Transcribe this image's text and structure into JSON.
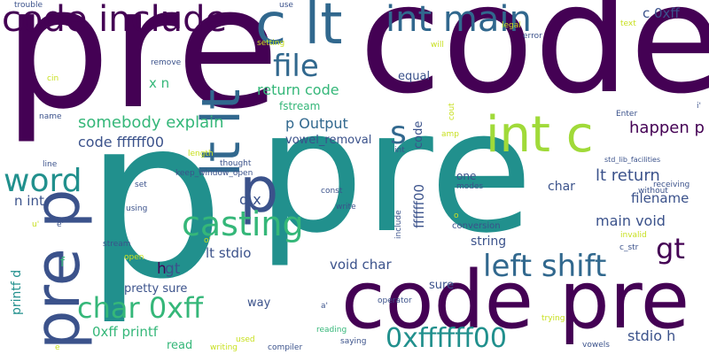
{
  "colors": {
    "dark_purple": "#440154",
    "indigo": "#3b528b",
    "blue": "#31688e",
    "teal": "#21908d",
    "green": "#35b779",
    "lime": "#a0da39",
    "yellow": "#c8e020",
    "dark_gray": "#46327e"
  },
  "words": [
    {
      "text": "pre",
      "color": "dark_purple",
      "rot": 0
    },
    {
      "text": "code",
      "color": "dark_purple",
      "rot": 0
    },
    {
      "text": "p",
      "color": "teal",
      "rot": 0
    },
    {
      "text": "pre",
      "color": "teal",
      "rot": 0
    },
    {
      "text": "code pre",
      "color": "dark_purple",
      "rot": 0
    },
    {
      "text": "code include",
      "color": "dark_purple",
      "rot": 0
    },
    {
      "text": "c lt",
      "color": "blue",
      "rot": 0
    },
    {
      "text": "int main",
      "color": "blue",
      "rot": 0
    },
    {
      "text": "int c",
      "color": "lime",
      "rot": 0
    },
    {
      "text": "lt lt",
      "color": "blue",
      "rot": -90
    },
    {
      "text": "pre p",
      "color": "indigo",
      "rot": -90
    },
    {
      "text": "p",
      "color": "indigo",
      "rot": 0
    },
    {
      "text": "file",
      "color": "blue",
      "rot": 0
    },
    {
      "text": "word",
      "color": "teal",
      "rot": 0
    },
    {
      "text": "casting",
      "color": "green",
      "rot": 0
    },
    {
      "text": "left shift",
      "color": "blue",
      "rot": 0
    },
    {
      "text": "char 0xff",
      "color": "green",
      "rot": 0
    },
    {
      "text": "0xffffff00",
      "color": "teal",
      "rot": 0
    },
    {
      "text": "gt",
      "color": "dark_purple",
      "rot": 0
    },
    {
      "text": "s",
      "color": "blue",
      "rot": 0
    },
    {
      "text": "return code",
      "color": "green",
      "rot": 0
    },
    {
      "text": "somebody explain",
      "color": "green",
      "rot": 0
    },
    {
      "text": "code ffffff00",
      "color": "indigo",
      "rot": 0
    },
    {
      "text": "p Output",
      "color": "blue",
      "rot": 0
    },
    {
      "text": "vowel_removal",
      "color": "indigo",
      "rot": 0
    },
    {
      "text": "happen p",
      "color": "dark_purple",
      "rot": 0
    },
    {
      "text": "lt return",
      "color": "indigo",
      "rot": 0
    },
    {
      "text": "filename",
      "color": "indigo",
      "rot": 0
    },
    {
      "text": "main void",
      "color": "indigo",
      "rot": 0
    },
    {
      "text": "stdio h",
      "color": "indigo",
      "rot": 0
    },
    {
      "text": "void char",
      "color": "indigo",
      "rot": 0
    },
    {
      "text": "lt stdio",
      "color": "indigo",
      "rot": 0
    },
    {
      "text": "pretty sure",
      "color": "indigo",
      "rot": 0
    },
    {
      "text": "0xff printf",
      "color": "green",
      "rot": 0
    },
    {
      "text": "string",
      "color": "indigo",
      "rot": 0
    },
    {
      "text": "char",
      "color": "indigo",
      "rot": 0
    },
    {
      "text": "sure",
      "color": "indigo",
      "rot": 0
    },
    {
      "text": "way",
      "color": "indigo",
      "rot": 0
    },
    {
      "text": "read",
      "color": "green",
      "rot": 0
    },
    {
      "text": "h",
      "color": "dark_purple",
      "rot": 0
    },
    {
      "text": "gt",
      "color": "indigo",
      "rot": 0
    },
    {
      "text": "d x",
      "color": "indigo",
      "rot": 0
    },
    {
      "text": "n int",
      "color": "indigo",
      "rot": 0
    },
    {
      "text": "x n",
      "color": "green",
      "rot": 0
    },
    {
      "text": "equal",
      "color": "indigo",
      "rot": 0
    },
    {
      "text": "fstream",
      "color": "green",
      "rot": 0
    },
    {
      "text": "c 0xff",
      "color": "indigo",
      "rot": 0
    },
    {
      "text": "ffffff00",
      "color": "indigo",
      "rot": -90
    },
    {
      "text": "code",
      "color": "indigo",
      "rot": -90
    },
    {
      "text": "printf d",
      "color": "teal",
      "rot": -90
    },
    {
      "text": "f",
      "color": "green",
      "rot": 0
    },
    {
      "text": "one",
      "color": "indigo",
      "rot": 0
    },
    {
      "text": "modes",
      "color": "indigo",
      "rot": 0
    },
    {
      "text": "conversion",
      "color": "indigo",
      "rot": 0
    },
    {
      "text": "int",
      "color": "indigo",
      "rot": 0
    },
    {
      "text": "const",
      "color": "indigo",
      "rot": 0
    },
    {
      "text": "write",
      "color": "indigo",
      "rot": 0
    },
    {
      "text": "include",
      "color": "indigo",
      "rot": -90
    },
    {
      "text": "operator",
      "color": "indigo",
      "rot": 0
    },
    {
      "text": "reading",
      "color": "green",
      "rot": 0
    },
    {
      "text": "saying",
      "color": "indigo",
      "rot": 0
    },
    {
      "text": "compiler",
      "color": "indigo",
      "rot": 0
    },
    {
      "text": "writing",
      "color": "yellow",
      "rot": 0
    },
    {
      "text": "used",
      "color": "yellow",
      "rot": 0
    },
    {
      "text": "vowels",
      "color": "indigo",
      "rot": 0
    },
    {
      "text": "trying",
      "color": "yellow",
      "rot": 0
    },
    {
      "text": "c_str",
      "color": "indigo",
      "rot": 0
    },
    {
      "text": "invalid",
      "color": "yellow",
      "rot": 0
    },
    {
      "text": "without",
      "color": "indigo",
      "rot": 0
    },
    {
      "text": "receiving",
      "color": "indigo",
      "rot": 0
    },
    {
      "text": "std_lib_facilities",
      "color": "indigo",
      "rot": 0
    },
    {
      "text": "Enter",
      "color": "indigo",
      "rot": 0
    },
    {
      "text": "error",
      "color": "indigo",
      "rot": 0
    },
    {
      "text": "text",
      "color": "yellow",
      "rot": 0
    },
    {
      "text": "legal",
      "color": "yellow",
      "rot": 0
    },
    {
      "text": "will",
      "color": "yellow",
      "rot": 0
    },
    {
      "text": "use",
      "color": "indigo",
      "rot": 0
    },
    {
      "text": "trouble",
      "color": "indigo",
      "rot": 0
    },
    {
      "text": "setting",
      "color": "yellow",
      "rot": 0
    },
    {
      "text": "remove",
      "color": "indigo",
      "rot": 0
    },
    {
      "text": "cin",
      "color": "yellow",
      "rot": 0
    },
    {
      "text": "name",
      "color": "indigo",
      "rot": 0
    },
    {
      "text": "line",
      "color": "indigo",
      "rot": 0
    },
    {
      "text": "length",
      "color": "yellow",
      "rot": 0
    },
    {
      "text": "thought",
      "color": "indigo",
      "rot": 0
    },
    {
      "text": "keep_window_open",
      "color": "indigo",
      "rot": 0
    },
    {
      "text": "set",
      "color": "indigo",
      "rot": 0
    },
    {
      "text": "using",
      "color": "indigo",
      "rot": 0
    },
    {
      "text": "stream",
      "color": "indigo",
      "rot": 0
    },
    {
      "text": "open",
      "color": "yellow",
      "rot": 0
    },
    {
      "text": "amp",
      "color": "yellow",
      "rot": 0
    },
    {
      "text": "cout",
      "color": "yellow",
      "rot": -90
    },
    {
      "text": "i'",
      "color": "indigo",
      "rot": 0
    },
    {
      "text": "u'",
      "color": "yellow",
      "rot": 0
    },
    {
      "text": "e'",
      "color": "indigo",
      "rot": 0
    },
    {
      "text": "o'",
      "color": "yellow",
      "rot": 0
    },
    {
      "text": "a'",
      "color": "indigo",
      "rot": 0
    },
    {
      "text": "o",
      "color": "yellow",
      "rot": 0
    },
    {
      "text": "e",
      "color": "yellow",
      "rot": 0
    }
  ]
}
